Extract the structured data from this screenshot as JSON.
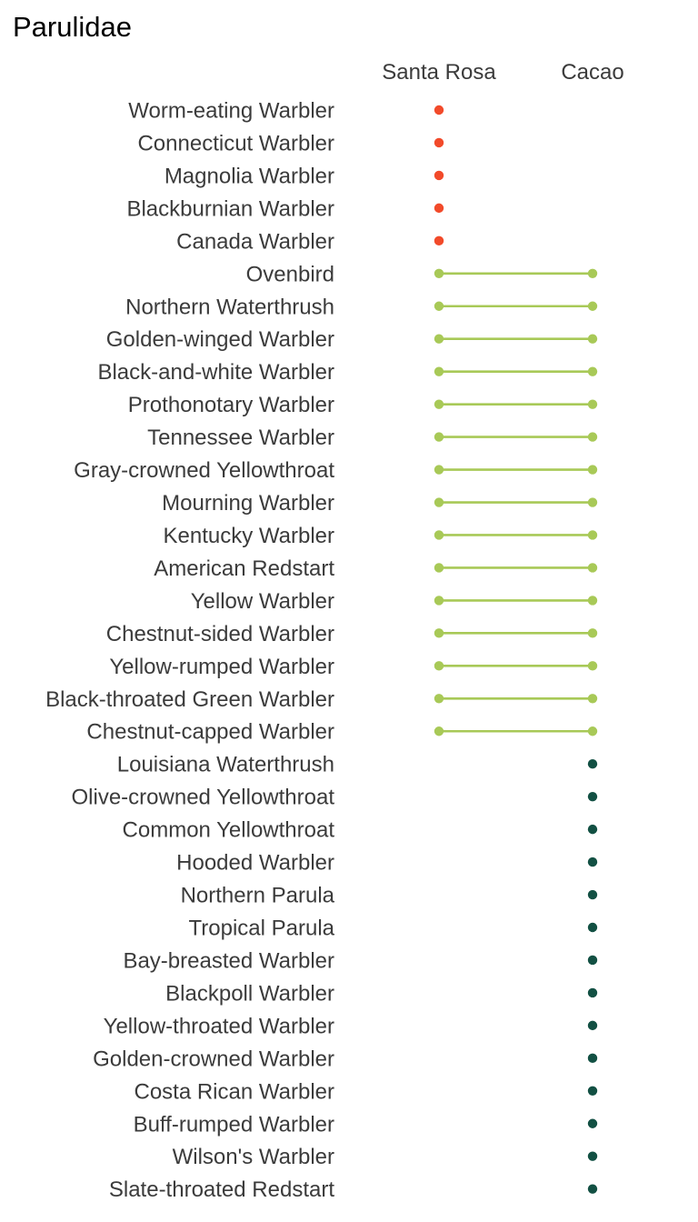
{
  "chart_data": {
    "type": "dumbbell",
    "title": "Parulidae",
    "columns": [
      "Santa Rosa",
      "Cacao"
    ],
    "colors": {
      "santa_rosa_only": "#f24a2a",
      "both": "#a8c957",
      "cacao_only": "#125043"
    },
    "legend": "none",
    "grid": false,
    "rows": [
      {
        "species": "Worm-eating Warbler",
        "sites": [
          "Santa Rosa"
        ]
      },
      {
        "species": "Connecticut Warbler",
        "sites": [
          "Santa Rosa"
        ]
      },
      {
        "species": "Magnolia Warbler",
        "sites": [
          "Santa Rosa"
        ]
      },
      {
        "species": "Blackburnian Warbler",
        "sites": [
          "Santa Rosa"
        ]
      },
      {
        "species": "Canada Warbler",
        "sites": [
          "Santa Rosa"
        ]
      },
      {
        "species": "Ovenbird",
        "sites": [
          "Santa Rosa",
          "Cacao"
        ]
      },
      {
        "species": "Northern Waterthrush",
        "sites": [
          "Santa Rosa",
          "Cacao"
        ]
      },
      {
        "species": "Golden-winged Warbler",
        "sites": [
          "Santa Rosa",
          "Cacao"
        ]
      },
      {
        "species": "Black-and-white Warbler",
        "sites": [
          "Santa Rosa",
          "Cacao"
        ]
      },
      {
        "species": "Prothonotary Warbler",
        "sites": [
          "Santa Rosa",
          "Cacao"
        ]
      },
      {
        "species": "Tennessee Warbler",
        "sites": [
          "Santa Rosa",
          "Cacao"
        ]
      },
      {
        "species": "Gray-crowned Yellowthroat",
        "sites": [
          "Santa Rosa",
          "Cacao"
        ]
      },
      {
        "species": "Mourning Warbler",
        "sites": [
          "Santa Rosa",
          "Cacao"
        ]
      },
      {
        "species": "Kentucky Warbler",
        "sites": [
          "Santa Rosa",
          "Cacao"
        ]
      },
      {
        "species": "American Redstart",
        "sites": [
          "Santa Rosa",
          "Cacao"
        ]
      },
      {
        "species": "Yellow Warbler",
        "sites": [
          "Santa Rosa",
          "Cacao"
        ]
      },
      {
        "species": "Chestnut-sided Warbler",
        "sites": [
          "Santa Rosa",
          "Cacao"
        ]
      },
      {
        "species": "Yellow-rumped Warbler",
        "sites": [
          "Santa Rosa",
          "Cacao"
        ]
      },
      {
        "species": "Black-throated Green Warbler",
        "sites": [
          "Santa Rosa",
          "Cacao"
        ]
      },
      {
        "species": "Chestnut-capped Warbler",
        "sites": [
          "Santa Rosa",
          "Cacao"
        ]
      },
      {
        "species": "Louisiana Waterthrush",
        "sites": [
          "Cacao"
        ]
      },
      {
        "species": "Olive-crowned Yellowthroat",
        "sites": [
          "Cacao"
        ]
      },
      {
        "species": "Common Yellowthroat",
        "sites": [
          "Cacao"
        ]
      },
      {
        "species": "Hooded Warbler",
        "sites": [
          "Cacao"
        ]
      },
      {
        "species": "Northern Parula",
        "sites": [
          "Cacao"
        ]
      },
      {
        "species": "Tropical Parula",
        "sites": [
          "Cacao"
        ]
      },
      {
        "species": "Bay-breasted Warbler",
        "sites": [
          "Cacao"
        ]
      },
      {
        "species": "Blackpoll Warbler",
        "sites": [
          "Cacao"
        ]
      },
      {
        "species": "Yellow-throated Warbler",
        "sites": [
          "Cacao"
        ]
      },
      {
        "species": "Golden-crowned Warbler",
        "sites": [
          "Cacao"
        ]
      },
      {
        "species": "Costa Rican Warbler",
        "sites": [
          "Cacao"
        ]
      },
      {
        "species": "Buff-rumped Warbler",
        "sites": [
          "Cacao"
        ]
      },
      {
        "species": "Wilson's Warbler",
        "sites": [
          "Cacao"
        ]
      },
      {
        "species": "Slate-throated Redstart",
        "sites": [
          "Cacao"
        ]
      }
    ]
  }
}
